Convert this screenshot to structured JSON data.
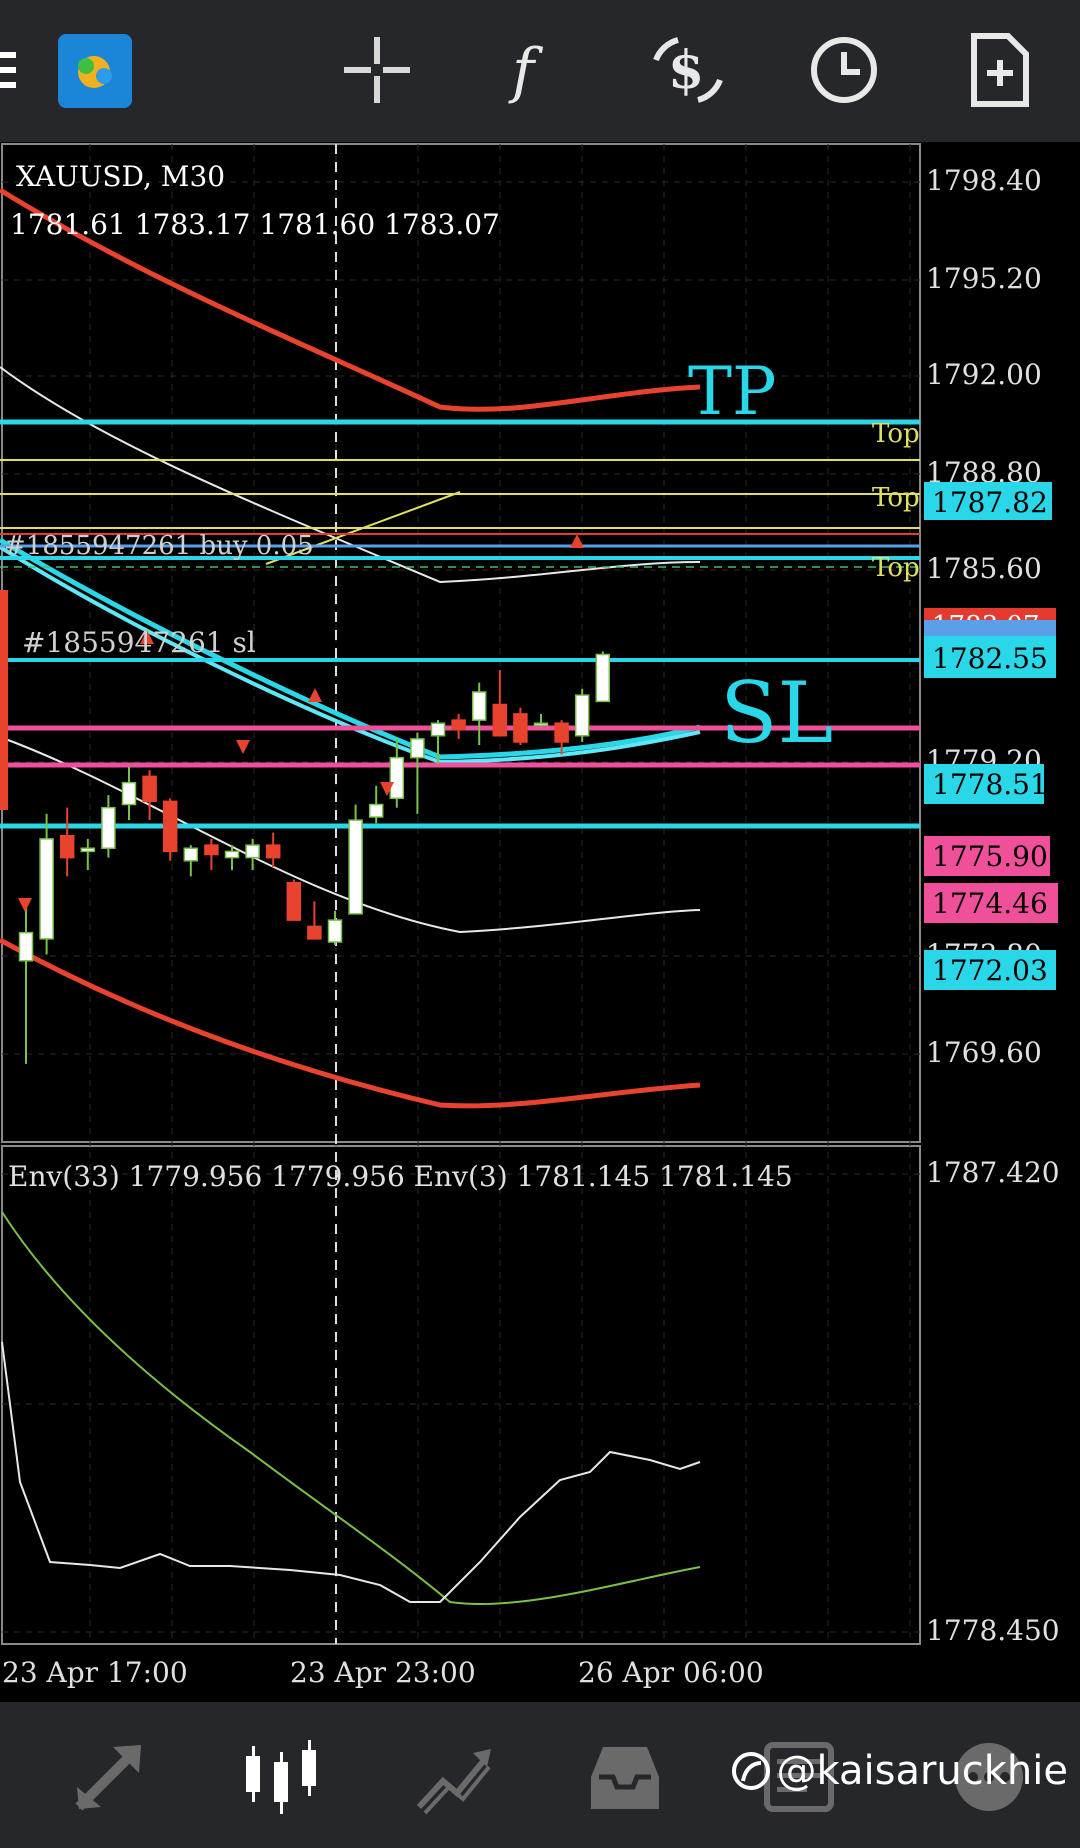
{
  "toolbar": {
    "menu_icon": "menu-icon",
    "app_icon": "metatrader-app-icon",
    "items": [
      "crosshair-icon",
      "function-icon",
      "trade-icon",
      "clock-icon",
      "new-file-icon"
    ]
  },
  "chart": {
    "symbol": "XAUUSD, M30",
    "ohlc": "1781.61 1783.17 1781.60 1783.07",
    "indicator_label": "Env(33) 1779.956 1779.956 Env(3) 1781.145 1781.145",
    "order_label": "#1855947261 buy 0.05",
    "sl_label": "#1855947261 sl",
    "tp_text": "TP",
    "sl_text": "SL",
    "top_label": "Top",
    "price_axis": [
      "1798.40",
      "1795.20",
      "1792.00",
      "1788.80",
      "1785.60",
      "1779.20",
      "1773.80",
      "1769.60"
    ],
    "indicator_axis": [
      "1787.420",
      "1778.450"
    ],
    "time_axis": [
      "23 Apr 17:00",
      "23 Apr 23:00",
      "26 Apr 06:00"
    ],
    "price_tags": {
      "tp": "1787.82",
      "hidden_red": "1783.07",
      "current": "1782.55",
      "line_1778": "1778.51",
      "pink1": "1775.90",
      "pink2": "1774.46",
      "line_1772": "1772.03"
    }
  },
  "chart_data": {
    "type": "candlestick",
    "symbol": "XAUUSD",
    "timeframe": "M30",
    "ylim": [
      1767.5,
      1799.5
    ],
    "candles": [
      {
        "o": 1773.3,
        "h": 1775.2,
        "l": 1770.0,
        "c": 1774.2
      },
      {
        "o": 1774.0,
        "h": 1778.0,
        "l": 1773.5,
        "c": 1777.2
      },
      {
        "o": 1777.3,
        "h": 1778.2,
        "l": 1776.0,
        "c": 1776.6
      },
      {
        "o": 1776.8,
        "h": 1777.2,
        "l": 1776.2,
        "c": 1776.9
      },
      {
        "o": 1776.9,
        "h": 1778.6,
        "l": 1776.6,
        "c": 1778.2
      },
      {
        "o": 1778.3,
        "h": 1779.5,
        "l": 1777.8,
        "c": 1779.0
      },
      {
        "o": 1779.2,
        "h": 1779.4,
        "l": 1777.8,
        "c": 1778.4
      },
      {
        "o": 1778.4,
        "h": 1778.5,
        "l": 1776.5,
        "c": 1776.8
      },
      {
        "o": 1776.5,
        "h": 1777.0,
        "l": 1776.0,
        "c": 1776.9
      },
      {
        "o": 1777.0,
        "h": 1777.2,
        "l": 1776.2,
        "c": 1776.7
      },
      {
        "o": 1776.6,
        "h": 1777.0,
        "l": 1776.2,
        "c": 1776.8
      },
      {
        "o": 1776.6,
        "h": 1777.2,
        "l": 1776.2,
        "c": 1777.0
      },
      {
        "o": 1777.0,
        "h": 1777.4,
        "l": 1776.3,
        "c": 1776.6
      },
      {
        "o": 1775.8,
        "h": 1775.9,
        "l": 1774.6,
        "c": 1774.6
      },
      {
        "o": 1774.4,
        "h": 1775.2,
        "l": 1774.0,
        "c": 1774.0
      },
      {
        "o": 1773.9,
        "h": 1774.9,
        "l": 1773.8,
        "c": 1774.6
      },
      {
        "o": 1774.8,
        "h": 1778.3,
        "l": 1774.8,
        "c": 1777.8
      },
      {
        "o": 1777.9,
        "h": 1778.9,
        "l": 1777.7,
        "c": 1778.3
      },
      {
        "o": 1778.5,
        "h": 1780.4,
        "l": 1778.2,
        "c": 1779.8
      },
      {
        "o": 1779.8,
        "h": 1780.6,
        "l": 1778.0,
        "c": 1780.4
      },
      {
        "o": 1780.5,
        "h": 1781.0,
        "l": 1779.6,
        "c": 1780.9
      },
      {
        "o": 1781.0,
        "h": 1781.2,
        "l": 1780.4,
        "c": 1780.7
      },
      {
        "o": 1781.0,
        "h": 1782.2,
        "l": 1780.2,
        "c": 1781.9
      },
      {
        "o": 1781.5,
        "h": 1782.6,
        "l": 1780.5,
        "c": 1780.5
      },
      {
        "o": 1781.2,
        "h": 1781.4,
        "l": 1780.2,
        "c": 1780.3
      },
      {
        "o": 1780.9,
        "h": 1781.2,
        "l": 1780.8,
        "c": 1780.9
      },
      {
        "o": 1780.9,
        "h": 1781.0,
        "l": 1779.9,
        "c": 1780.3
      },
      {
        "o": 1780.5,
        "h": 1782.0,
        "l": 1780.3,
        "c": 1781.8
      },
      {
        "o": 1781.6,
        "h": 1783.2,
        "l": 1781.6,
        "c": 1783.1
      }
    ],
    "horizontal_lines": [
      1787.82,
      1786.4,
      1785.2,
      1783.8,
      1783.07,
      1782.55,
      1778.51,
      1775.9,
      1774.46,
      1772.03
    ],
    "indicator_series": [
      "Env(33)",
      "Env(3)"
    ]
  },
  "bottombar": {
    "items": [
      "quotes-icon",
      "chart-icon",
      "trade-icon",
      "history-icon",
      "news-icon",
      "chat-icon"
    ],
    "watermark": "@kaisaruckhie"
  },
  "colors": {
    "bull": "#ffffff",
    "bear": "#e8432e",
    "cyan": "#2ad7e8",
    "pink": "#f0509a",
    "yellow": "#e0e060",
    "red": "#e53a2e"
  }
}
